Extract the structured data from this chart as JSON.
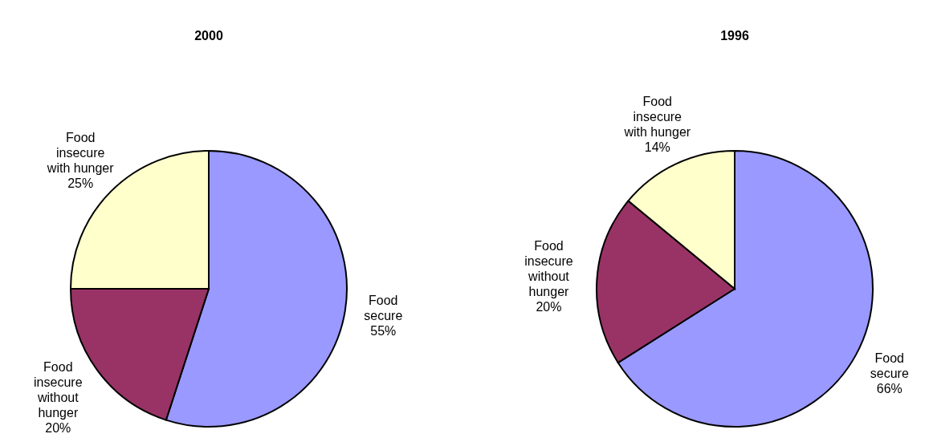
{
  "chart_data": [
    {
      "type": "pie",
      "title": "2000",
      "categories": [
        "Food secure",
        "Food insecure without hunger",
        "Food insecure with hunger"
      ],
      "values": [
        55,
        20,
        25
      ],
      "value_labels": [
        "55%",
        "20%",
        "25%"
      ],
      "colors": [
        "#9999ff",
        "#993366",
        "#ffffcc"
      ]
    },
    {
      "type": "pie",
      "title": "1996",
      "categories": [
        "Food secure",
        "Food insecure without hunger",
        "Food insecure with hunger"
      ],
      "values": [
        66,
        20,
        14
      ],
      "value_labels": [
        "66%",
        "20%",
        "14%"
      ],
      "colors": [
        "#9999ff",
        "#993366",
        "#ffffcc"
      ]
    }
  ]
}
